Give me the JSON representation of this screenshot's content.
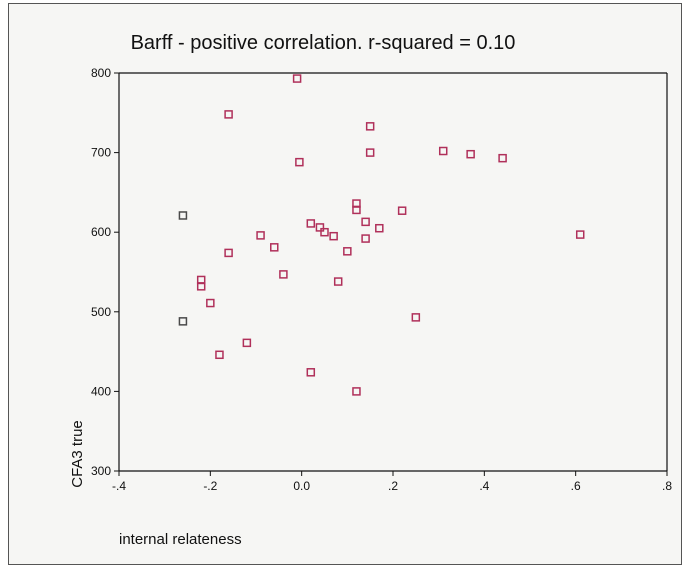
{
  "chart_data": {
    "type": "scatter",
    "title": "Barff - positive correlation.  r-squared = 0.10",
    "xlabel": "internal relateness",
    "ylabel": "CFA3 true",
    "xlim": [
      -0.4,
      0.8
    ],
    "ylim": [
      300,
      800
    ],
    "x_ticks": [
      -0.4,
      -0.2,
      0.0,
      0.2,
      0.4,
      0.6,
      0.8
    ],
    "x_tick_labels": [
      "-.4",
      "-.2",
      "0.0",
      ".2",
      ".4",
      ".6",
      ".8"
    ],
    "y_ticks": [
      300,
      400,
      500,
      600,
      700,
      800
    ],
    "y_tick_labels": [
      "300",
      "400",
      "500",
      "600",
      "700",
      "800"
    ],
    "grid": false,
    "series": [
      {
        "color": "#b0305a",
        "points": [
          [
            -0.01,
            793
          ],
          [
            -0.16,
            748
          ],
          [
            0.15,
            733
          ],
          [
            0.15,
            700
          ],
          [
            -0.005,
            688
          ],
          [
            0.31,
            702
          ],
          [
            0.37,
            698
          ],
          [
            0.44,
            693
          ],
          [
            0.61,
            597
          ],
          [
            0.12,
            636
          ],
          [
            0.12,
            628
          ],
          [
            0.22,
            627
          ],
          [
            0.02,
            611
          ],
          [
            0.14,
            613
          ],
          [
            0.04,
            606
          ],
          [
            0.17,
            605
          ],
          [
            0.05,
            600
          ],
          [
            0.07,
            595
          ],
          [
            0.14,
            592
          ],
          [
            -0.09,
            596
          ],
          [
            -0.06,
            581
          ],
          [
            0.1,
            576
          ],
          [
            -0.16,
            574
          ],
          [
            -0.04,
            547
          ],
          [
            0.08,
            538
          ],
          [
            -0.22,
            540
          ],
          [
            -0.22,
            532
          ],
          [
            -0.2,
            511
          ],
          [
            0.25,
            493
          ],
          [
            -0.12,
            461
          ],
          [
            -0.18,
            446
          ],
          [
            0.02,
            424
          ],
          [
            0.12,
            400
          ]
        ]
      },
      {
        "color": "#4a4a4a",
        "points": [
          [
            -0.26,
            621
          ],
          [
            -0.26,
            488
          ]
        ]
      }
    ]
  }
}
